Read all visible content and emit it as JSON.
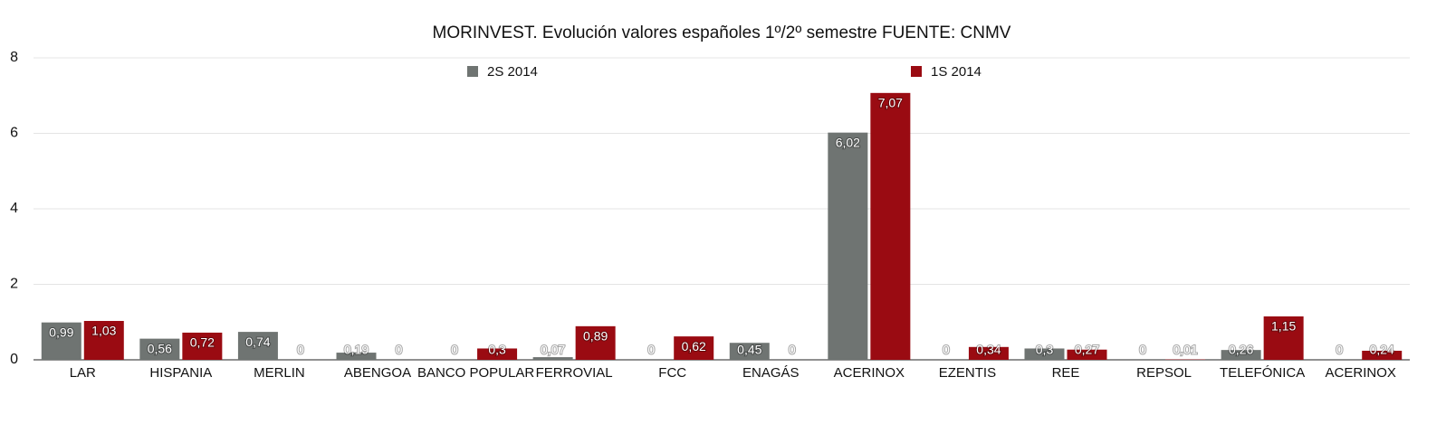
{
  "chart_data": {
    "type": "bar",
    "title": "MORINVEST. Evolución valores españoles 1º/2º semestre FUENTE: CNMV",
    "categories": [
      "LAR",
      "HISPANIA",
      "MERLIN",
      "ABENGOA",
      "BANCO POPULAR",
      "FERROVIAL",
      "FCC",
      "ENAGÁS",
      "ACERINOX",
      "EZENTIS",
      "REE",
      "REPSOL",
      "TELEFÓNICA",
      "ACERINOX"
    ],
    "series": [
      {
        "name": "2S 2014",
        "color": "#6f7472",
        "values": [
          0.99,
          0.56,
          0.74,
          0.19,
          0,
          0.07,
          0,
          0.45,
          6.02,
          0,
          0.3,
          0,
          0.26,
          0
        ],
        "value_labels": [
          "0,99",
          "0,56",
          "0,74",
          "0,19",
          "0",
          "0,07",
          "0",
          "0,45",
          "6,02",
          "0",
          "0,3",
          "0",
          "0,26",
          "0"
        ]
      },
      {
        "name": "1S 2014",
        "color": "#9a0b12",
        "values": [
          1.03,
          0.72,
          0,
          0,
          0.3,
          0.89,
          0.62,
          0,
          7.07,
          0.34,
          0.27,
          0.01,
          1.15,
          0.24
        ],
        "value_labels": [
          "1,03",
          "0,72",
          "0",
          "0",
          "0,3",
          "0,89",
          "0,62",
          "0",
          "7,07",
          "0,34",
          "0,27",
          "0,01",
          "1,15",
          "0,24"
        ]
      }
    ],
    "ylim": [
      0,
      8
    ],
    "yticks": [
      0,
      2,
      4,
      6,
      8
    ],
    "grid": true,
    "legend": "top"
  }
}
